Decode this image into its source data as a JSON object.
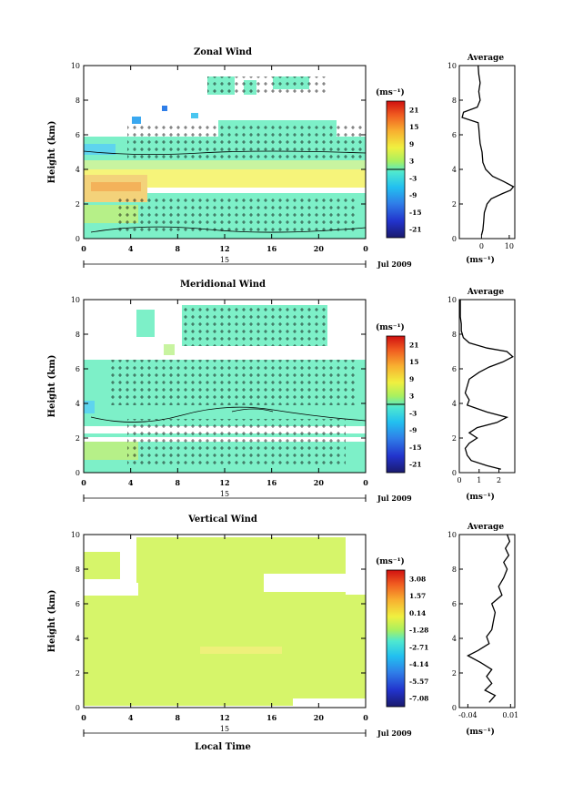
{
  "figure": {
    "xlabel_bottom": "Local Time",
    "date_label": "Jul 2009",
    "day_label": "15",
    "ylabel": "Height (km)",
    "time_ticks": [
      "0",
      "4",
      "8",
      "12",
      "16",
      "20",
      "0"
    ],
    "height_ticks": [
      "0",
      "2",
      "4",
      "6",
      "8",
      "10"
    ]
  },
  "chart_data": [
    {
      "type": "heatmap",
      "title": "Zonal Wind",
      "xlabel": "",
      "ylabel": "Height (km)",
      "x_range_hours": [
        0,
        24
      ],
      "ylim": [
        0,
        10
      ],
      "colorbar": {
        "unit": "(ms⁻¹)",
        "ticks": [
          "21",
          "15",
          "9",
          "3",
          "-3",
          "-9",
          "-15",
          "-21"
        ],
        "range": [
          -24,
          24
        ]
      },
      "average_profile": {
        "title": "Average",
        "xlabel": "(ms⁻¹)",
        "xticks": [
          "0",
          "10"
        ],
        "xlim": [
          -8,
          12
        ],
        "heights": [
          0.2,
          0.5,
          1.0,
          1.5,
          2.0,
          2.3,
          2.6,
          2.8,
          3.0,
          3.3,
          3.6,
          4.0,
          4.4,
          5.0,
          5.5,
          6.0,
          6.4,
          6.7,
          7.0,
          7.3,
          7.6,
          8.0,
          8.5,
          9.0,
          9.5,
          10.0
        ],
        "values": [
          0,
          0.5,
          0.8,
          1.0,
          2.0,
          3.5,
          7.5,
          10.5,
          11.5,
          8.0,
          4.0,
          1.5,
          0.5,
          0.2,
          -0.5,
          -0.8,
          -1.0,
          -1.2,
          -7.0,
          -6.5,
          -1.5,
          -0.5,
          -1.0,
          -0.5,
          -1.0,
          -1.2
        ]
      }
    },
    {
      "type": "heatmap",
      "title": "Meridional Wind",
      "xlabel": "",
      "ylabel": "Height (km)",
      "x_range_hours": [
        0,
        24
      ],
      "ylim": [
        0,
        10
      ],
      "colorbar": {
        "unit": "(ms⁻¹)",
        "ticks": [
          "21",
          "15",
          "9",
          "3",
          "-3",
          "-9",
          "-15",
          "-21"
        ],
        "range": [
          -24,
          24
        ]
      },
      "average_profile": {
        "title": "Average",
        "xlabel": "(ms⁻¹)",
        "xticks": [
          "0",
          "1",
          "2"
        ],
        "xlim": [
          0,
          2.8
        ],
        "heights": [
          0.2,
          0.4,
          0.7,
          1.0,
          1.4,
          1.7,
          2.0,
          2.3,
          2.6,
          2.9,
          3.2,
          3.5,
          3.9,
          4.2,
          4.6,
          5.0,
          5.4,
          5.8,
          6.1,
          6.4,
          6.7,
          7.0,
          7.2,
          7.5,
          7.8,
          8.2,
          8.6,
          9.0,
          9.5,
          10.0
        ],
        "values": [
          2.1,
          1.4,
          0.6,
          0.4,
          0.3,
          0.5,
          0.9,
          0.5,
          0.9,
          1.9,
          2.4,
          1.4,
          0.4,
          0.5,
          0.3,
          0.4,
          0.5,
          1.0,
          1.5,
          2.2,
          2.7,
          2.4,
          1.4,
          0.5,
          0.2,
          0.1,
          0.1,
          0.05,
          0.05,
          0.05
        ]
      }
    },
    {
      "type": "heatmap",
      "title": "Vertical Wind",
      "xlabel": "Local Time",
      "ylabel": "Height (km)",
      "x_range_hours": [
        0,
        24
      ],
      "ylim": [
        0,
        10
      ],
      "colorbar": {
        "unit": "(ms⁻¹)",
        "ticks": [
          "3.08",
          "1.57",
          "0.14",
          "-1.28",
          "-2.71",
          "-4.14",
          "-5.57",
          "-7.08"
        ],
        "range": [
          -8,
          4
        ]
      },
      "average_profile": {
        "title": "Average",
        "xlabel": "(ms⁻¹)",
        "xticks": [
          "-0.04",
          "0.01"
        ],
        "xlim": [
          -0.05,
          0.015
        ],
        "heights": [
          0.3,
          0.7,
          1.0,
          1.4,
          1.8,
          2.2,
          2.6,
          3.0,
          3.3,
          3.7,
          4.1,
          4.5,
          5.0,
          5.5,
          6.0,
          6.5,
          7.0,
          7.5,
          8.0,
          8.4,
          8.8,
          9.2,
          9.6,
          10.0
        ],
        "values": [
          -0.015,
          -0.008,
          -0.02,
          -0.012,
          -0.018,
          -0.012,
          -0.025,
          -0.04,
          -0.028,
          -0.015,
          -0.018,
          -0.012,
          -0.01,
          -0.008,
          -0.012,
          0.0,
          -0.004,
          0.002,
          0.006,
          0.002,
          0.008,
          0.004,
          0.009,
          0.006
        ]
      }
    }
  ]
}
